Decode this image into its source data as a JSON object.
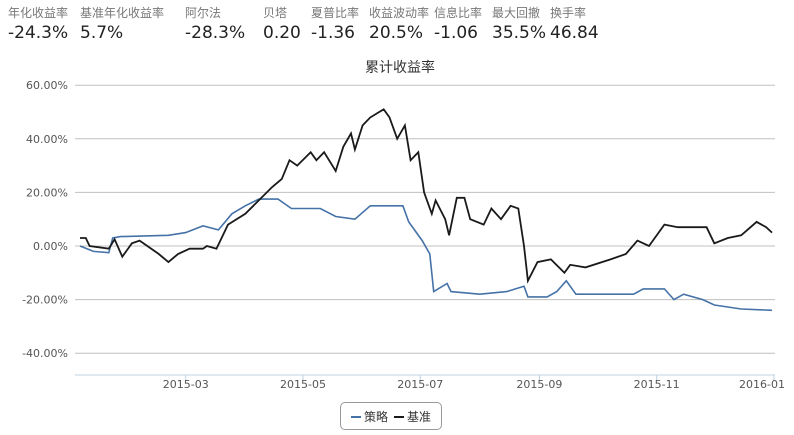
{
  "stats": [
    {
      "label": "年化收益率",
      "value": "-24.3%"
    },
    {
      "label": "基准年化收益率",
      "value": "5.7%"
    },
    {
      "label": "阿尔法",
      "value": "-28.3%"
    },
    {
      "label": "贝塔",
      "value": "0.20"
    },
    {
      "label": "夏普比率",
      "value": "-1.36"
    },
    {
      "label": "收益波动率",
      "value": "20.5%"
    },
    {
      "label": "信息比率",
      "value": "-1.06"
    },
    {
      "label": "最大回撤",
      "value": "35.5%"
    },
    {
      "label": "换手率",
      "value": "46.84"
    }
  ],
  "chart_data": {
    "type": "line",
    "title": "累计收益率",
    "ylim": [
      -40,
      60
    ],
    "yticks": [
      "60.00%",
      "40.00%",
      "20.00%",
      "0.00%",
      "-20.00%",
      "-40.00%"
    ],
    "ytick_values": [
      60,
      40,
      20,
      0,
      -20,
      -40
    ],
    "xticks": [
      "2015-03",
      "2015-05",
      "2015-07",
      "2015-09",
      "2015-11",
      "2016-01"
    ],
    "xlim": [
      "2015-01-05",
      "2015-12-31"
    ],
    "grid": true,
    "legend_position": "bottom",
    "series": [
      {
        "name": "策略",
        "color": "#4572A7",
        "points": [
          [
            "2015-01-05",
            0
          ],
          [
            "2015-01-12",
            -2
          ],
          [
            "2015-01-20",
            -2.5
          ],
          [
            "2015-01-22",
            3
          ],
          [
            "2015-01-26",
            3.5
          ],
          [
            "2015-02-20",
            4
          ],
          [
            "2015-03-01",
            5
          ],
          [
            "2015-03-10",
            7.5
          ],
          [
            "2015-03-18",
            6
          ],
          [
            "2015-03-25",
            12
          ],
          [
            "2015-04-01",
            15
          ],
          [
            "2015-04-08",
            17.5
          ],
          [
            "2015-04-18",
            17.5
          ],
          [
            "2015-04-25",
            14
          ],
          [
            "2015-05-10",
            14
          ],
          [
            "2015-05-18",
            11
          ],
          [
            "2015-05-28",
            10
          ],
          [
            "2015-06-05",
            15
          ],
          [
            "2015-06-22",
            15
          ],
          [
            "2015-06-25",
            9
          ],
          [
            "2015-07-02",
            2
          ],
          [
            "2015-07-06",
            -3
          ],
          [
            "2015-07-08",
            -17
          ],
          [
            "2015-07-15",
            -14
          ],
          [
            "2015-07-17",
            -17
          ],
          [
            "2015-08-01",
            -18
          ],
          [
            "2015-08-15",
            -17
          ],
          [
            "2015-08-24",
            -15
          ],
          [
            "2015-08-26",
            -19
          ],
          [
            "2015-09-05",
            -19
          ],
          [
            "2015-09-10",
            -17
          ],
          [
            "2015-09-15",
            -13
          ],
          [
            "2015-09-20",
            -18
          ],
          [
            "2015-10-20",
            -18
          ],
          [
            "2015-10-25",
            -16
          ],
          [
            "2015-11-05",
            -16
          ],
          [
            "2015-11-10",
            -20
          ],
          [
            "2015-11-15",
            -18
          ],
          [
            "2015-11-25",
            -20
          ],
          [
            "2015-12-01",
            -22
          ],
          [
            "2015-12-15",
            -23.5
          ],
          [
            "2015-12-31",
            -24
          ]
        ]
      },
      {
        "name": "基准",
        "color": "#1a1a1a",
        "points": [
          [
            "2015-01-05",
            3
          ],
          [
            "2015-01-08",
            3
          ],
          [
            "2015-01-10",
            0
          ],
          [
            "2015-01-20",
            -1
          ],
          [
            "2015-01-23",
            2.5
          ],
          [
            "2015-01-27",
            -4
          ],
          [
            "2015-02-01",
            1
          ],
          [
            "2015-02-05",
            2
          ],
          [
            "2015-02-15",
            -3
          ],
          [
            "2015-02-20",
            -6
          ],
          [
            "2015-02-25",
            -3
          ],
          [
            "2015-03-03",
            -1
          ],
          [
            "2015-03-10",
            -1
          ],
          [
            "2015-03-12",
            0
          ],
          [
            "2015-03-17",
            -1
          ],
          [
            "2015-03-23",
            8
          ],
          [
            "2015-04-01",
            12
          ],
          [
            "2015-04-08",
            17
          ],
          [
            "2015-04-15",
            22
          ],
          [
            "2015-04-20",
            25
          ],
          [
            "2015-04-24",
            32
          ],
          [
            "2015-04-28",
            30
          ],
          [
            "2015-05-05",
            35
          ],
          [
            "2015-05-08",
            32
          ],
          [
            "2015-05-12",
            35
          ],
          [
            "2015-05-18",
            28
          ],
          [
            "2015-05-22",
            37
          ],
          [
            "2015-05-26",
            42
          ],
          [
            "2015-05-28",
            36
          ],
          [
            "2015-06-01",
            45
          ],
          [
            "2015-06-05",
            48
          ],
          [
            "2015-06-12",
            51
          ],
          [
            "2015-06-15",
            48
          ],
          [
            "2015-06-19",
            40
          ],
          [
            "2015-06-23",
            45
          ],
          [
            "2015-06-26",
            32
          ],
          [
            "2015-06-30",
            35
          ],
          [
            "2015-07-03",
            20
          ],
          [
            "2015-07-07",
            12
          ],
          [
            "2015-07-09",
            17
          ],
          [
            "2015-07-14",
            10
          ],
          [
            "2015-07-16",
            4
          ],
          [
            "2015-07-20",
            18
          ],
          [
            "2015-07-24",
            18
          ],
          [
            "2015-07-27",
            10
          ],
          [
            "2015-08-03",
            8
          ],
          [
            "2015-08-07",
            14
          ],
          [
            "2015-08-12",
            10
          ],
          [
            "2015-08-17",
            15
          ],
          [
            "2015-08-21",
            14
          ],
          [
            "2015-08-24",
            0
          ],
          [
            "2015-08-26",
            -13
          ],
          [
            "2015-08-31",
            -6
          ],
          [
            "2015-09-07",
            -5
          ],
          [
            "2015-09-14",
            -10
          ],
          [
            "2015-09-17",
            -7
          ],
          [
            "2015-09-25",
            -8
          ],
          [
            "2015-10-08",
            -5
          ],
          [
            "2015-10-16",
            -3
          ],
          [
            "2015-10-22",
            2
          ],
          [
            "2015-10-28",
            0
          ],
          [
            "2015-11-05",
            8
          ],
          [
            "2015-11-12",
            7
          ],
          [
            "2015-11-20",
            7
          ],
          [
            "2015-11-27",
            7
          ],
          [
            "2015-12-01",
            1
          ],
          [
            "2015-12-08",
            3
          ],
          [
            "2015-12-15",
            4
          ],
          [
            "2015-12-23",
            9
          ],
          [
            "2015-12-28",
            7
          ],
          [
            "2015-12-31",
            5
          ]
        ]
      }
    ]
  }
}
